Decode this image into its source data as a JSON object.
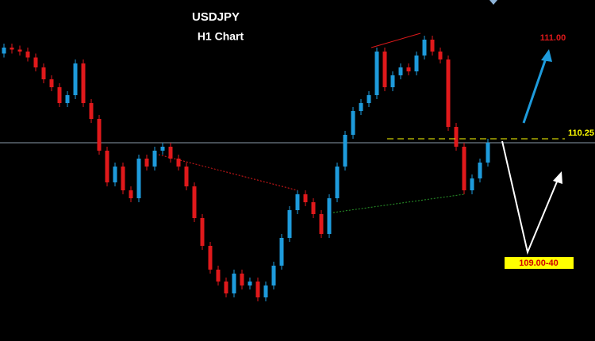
{
  "chart_data": {
    "type": "candlestick",
    "title": "USDJPY",
    "subtitle": "H1 Chart",
    "ylim": [
      109.23,
      110.95
    ],
    "up_color": "#1e9bdc",
    "down_color": "#e0191b",
    "open": [
      110.68,
      110.71,
      110.7,
      110.69,
      110.66,
      110.61,
      110.55,
      110.51,
      110.43,
      110.47,
      110.63,
      110.43,
      110.35,
      110.19,
      110.03,
      110.11,
      109.99,
      109.95,
      110.15,
      110.11,
      110.19,
      110.21,
      110.15,
      110.11,
      110.01,
      109.85,
      109.71,
      109.59,
      109.53,
      109.47,
      109.57,
      109.51,
      109.53,
      109.45,
      109.51,
      109.61,
      109.75,
      109.89,
      109.97,
      109.93,
      109.87,
      109.77,
      109.95,
      110.11,
      110.27,
      110.39,
      110.43,
      110.47,
      110.69,
      110.51,
      110.57,
      110.61,
      110.59,
      110.67,
      110.75,
      110.69,
      110.65,
      110.31,
      110.21,
      109.99,
      110.05,
      110.13
    ],
    "high": [
      110.73,
      110.73,
      110.72,
      110.71,
      110.68,
      110.63,
      110.57,
      110.53,
      110.49,
      110.65,
      110.65,
      110.45,
      110.37,
      110.21,
      110.13,
      110.13,
      110.01,
      110.17,
      110.17,
      110.21,
      110.23,
      110.23,
      110.17,
      110.13,
      110.03,
      109.87,
      109.73,
      109.61,
      109.55,
      109.59,
      109.59,
      109.55,
      109.55,
      109.53,
      109.63,
      109.77,
      109.91,
      109.99,
      109.99,
      109.95,
      109.89,
      109.97,
      110.13,
      110.29,
      110.41,
      110.45,
      110.49,
      110.71,
      110.71,
      110.59,
      110.63,
      110.63,
      110.69,
      110.77,
      110.77,
      110.71,
      110.67,
      110.33,
      110.23,
      110.07,
      110.15,
      110.25
    ],
    "low": [
      110.66,
      110.68,
      110.67,
      110.64,
      110.59,
      110.53,
      110.49,
      110.41,
      110.41,
      110.45,
      110.41,
      110.33,
      110.17,
      110.01,
      110.01,
      109.97,
      109.93,
      109.93,
      110.09,
      110.09,
      110.17,
      110.13,
      110.09,
      109.99,
      109.83,
      109.69,
      109.57,
      109.51,
      109.45,
      109.45,
      109.49,
      109.49,
      109.43,
      109.43,
      109.49,
      109.59,
      109.73,
      109.87,
      109.91,
      109.85,
      109.75,
      109.75,
      109.93,
      110.09,
      110.25,
      110.37,
      110.41,
      110.45,
      110.49,
      110.49,
      110.55,
      110.57,
      110.57,
      110.65,
      110.67,
      110.63,
      110.29,
      110.19,
      109.97,
      109.97,
      110.03,
      110.11
    ],
    "close": [
      110.71,
      110.7,
      110.69,
      110.66,
      110.61,
      110.55,
      110.51,
      110.43,
      110.47,
      110.63,
      110.43,
      110.35,
      110.19,
      110.03,
      110.11,
      109.99,
      109.95,
      110.15,
      110.11,
      110.19,
      110.21,
      110.15,
      110.11,
      110.01,
      109.85,
      109.71,
      109.59,
      109.53,
      109.47,
      109.57,
      109.51,
      109.53,
      109.45,
      109.51,
      109.61,
      109.75,
      109.89,
      109.97,
      109.93,
      109.87,
      109.77,
      109.95,
      110.11,
      110.27,
      110.39,
      110.43,
      110.47,
      110.69,
      110.51,
      110.57,
      110.61,
      110.59,
      110.67,
      110.75,
      110.69,
      110.65,
      110.31,
      110.21,
      109.99,
      110.05,
      110.13,
      110.23
    ],
    "level": {
      "value": 110.25,
      "label": "110.25"
    },
    "targets": [
      "111.00",
      "109.00-40"
    ]
  }
}
